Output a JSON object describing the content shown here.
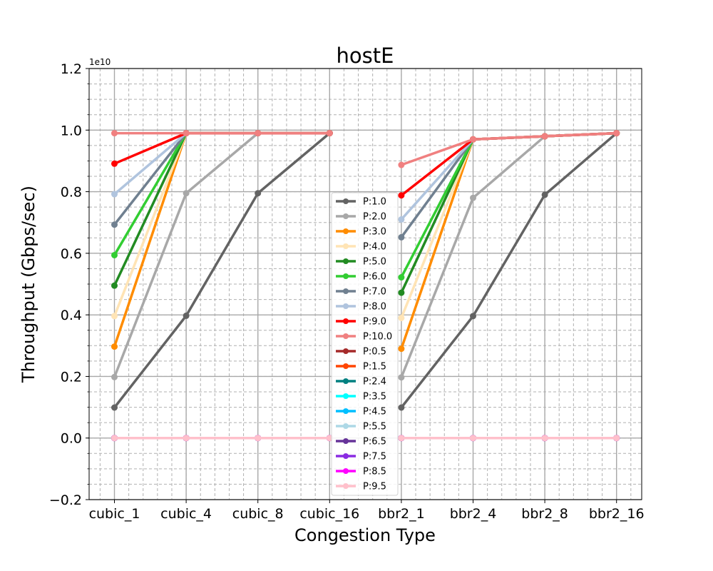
{
  "chart_data": {
    "type": "line",
    "title": "hostE",
    "xlabel": "Congestion Type",
    "ylabel": "Throughput (Gbps/sec)",
    "y_offset_label": "1e10",
    "categories": [
      "cubic_1",
      "cubic_4",
      "cubic_8",
      "cubic_16",
      "bbr2_1",
      "bbr2_4",
      "bbr2_8",
      "bbr2_16"
    ],
    "ylim": [
      -0.2,
      1.2
    ],
    "y_ticks": [
      -0.2,
      0.0,
      0.2,
      0.4,
      0.6,
      0.8,
      1.0,
      1.2
    ],
    "y_tick_labels": [
      "−0.2",
      "0.0",
      "0.2",
      "0.4",
      "0.6",
      "0.8",
      "1.0",
      "1.2"
    ],
    "grid": true,
    "legend_position": "center",
    "series": [
      {
        "name": "P:1.0",
        "color": "#636363",
        "values": [
          0.099,
          0.397,
          0.795,
          0.99,
          0.099,
          0.396,
          0.79,
          0.99
        ]
      },
      {
        "name": "P:2.0",
        "color": "#a8a8a8",
        "values": [
          0.198,
          0.795,
          0.99,
          0.99,
          0.197,
          0.78,
          0.98,
          0.99
        ]
      },
      {
        "name": "P:3.0",
        "color": "#ff8c00",
        "values": [
          0.297,
          0.99,
          0.99,
          0.99,
          0.29,
          0.97,
          0.98,
          0.99
        ]
      },
      {
        "name": "P:4.0",
        "color": "#ffe4b5",
        "values": [
          0.396,
          0.99,
          0.99,
          0.99,
          0.39,
          0.97,
          0.98,
          0.99
        ]
      },
      {
        "name": "P:5.0",
        "color": "#228b22",
        "values": [
          0.495,
          0.99,
          0.99,
          0.99,
          0.472,
          0.97,
          0.98,
          0.99
        ]
      },
      {
        "name": "P:6.0",
        "color": "#32cd32",
        "values": [
          0.594,
          0.99,
          0.99,
          0.99,
          0.522,
          0.97,
          0.98,
          0.99
        ]
      },
      {
        "name": "P:7.0",
        "color": "#708090",
        "values": [
          0.693,
          0.99,
          0.99,
          0.99,
          0.652,
          0.97,
          0.98,
          0.99
        ]
      },
      {
        "name": "P:8.0",
        "color": "#b0c4de",
        "values": [
          0.792,
          0.99,
          0.99,
          0.99,
          0.71,
          0.97,
          0.98,
          0.99
        ]
      },
      {
        "name": "P:9.0",
        "color": "#ff0000",
        "values": [
          0.891,
          0.99,
          0.99,
          0.99,
          0.788,
          0.97,
          0.98,
          0.99
        ]
      },
      {
        "name": "P:10.0",
        "color": "#f08080",
        "values": [
          0.99,
          0.99,
          0.99,
          0.99,
          0.887,
          0.97,
          0.98,
          0.99
        ]
      },
      {
        "name": "P:0.5",
        "color": "#a52a2a",
        "values": [
          0,
          0,
          0,
          0,
          0,
          0,
          0,
          0
        ]
      },
      {
        "name": "P:1.5",
        "color": "#ff4500",
        "values": [
          0,
          0,
          0,
          0,
          0,
          0,
          0,
          0
        ]
      },
      {
        "name": "P:2.4",
        "color": "#008080",
        "values": [
          0,
          0,
          0,
          0,
          0,
          0,
          0,
          0
        ]
      },
      {
        "name": "P:3.5",
        "color": "#00ffff",
        "values": [
          0,
          0,
          0,
          0,
          0,
          0,
          0,
          0
        ]
      },
      {
        "name": "P:4.5",
        "color": "#00bfff",
        "values": [
          0,
          0,
          0,
          0,
          0,
          0,
          0,
          0
        ]
      },
      {
        "name": "P:5.5",
        "color": "#add8e6",
        "values": [
          0,
          0,
          0,
          0,
          0,
          0,
          0,
          0
        ]
      },
      {
        "name": "P:6.5",
        "color": "#663399",
        "values": [
          0,
          0,
          0,
          0,
          0,
          0,
          0,
          0
        ]
      },
      {
        "name": "P:7.5",
        "color": "#8a2be2",
        "values": [
          0,
          0,
          0,
          0,
          0,
          0,
          0,
          0
        ]
      },
      {
        "name": "P:8.5",
        "color": "#ff00ff",
        "values": [
          0,
          0,
          0,
          0,
          0,
          0,
          0,
          0
        ]
      },
      {
        "name": "P:9.5",
        "color": "#ffc0cb",
        "values": [
          0,
          0,
          0,
          0,
          0,
          0,
          0,
          0
        ]
      }
    ]
  }
}
